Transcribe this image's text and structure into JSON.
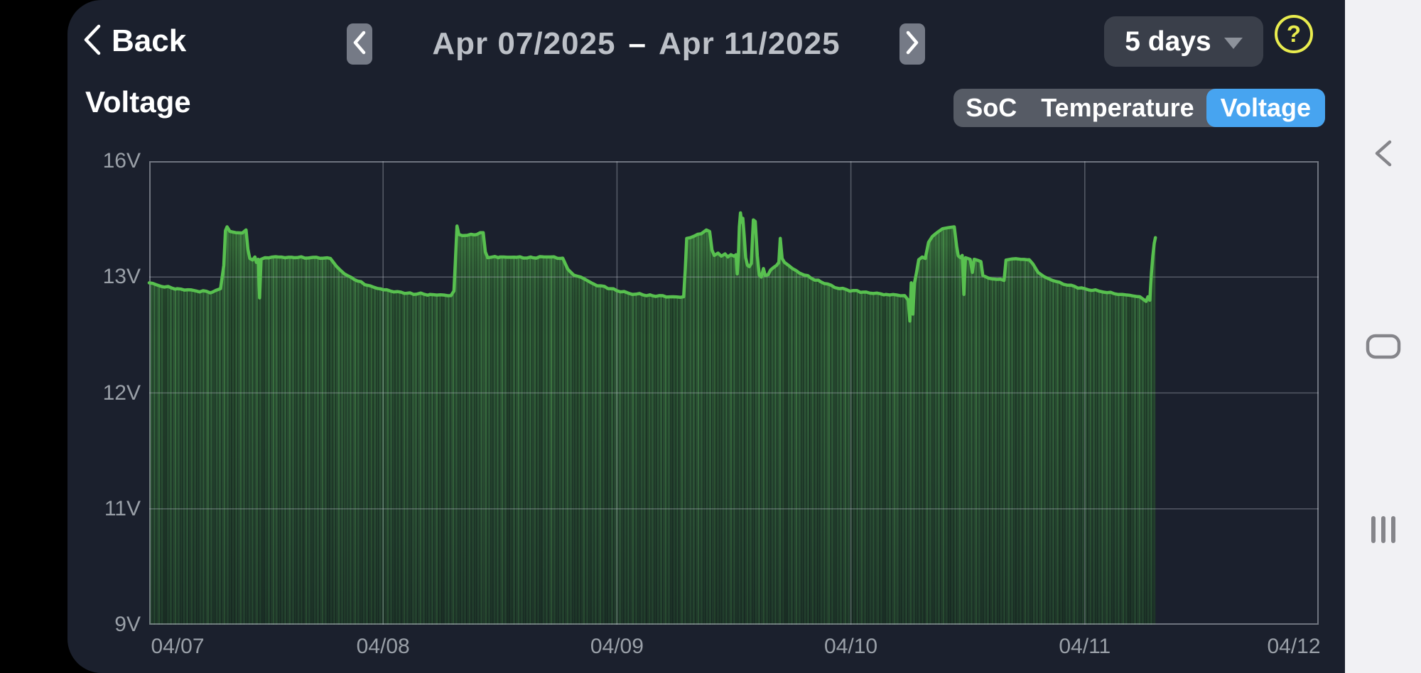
{
  "app": {
    "back_label": "Back",
    "date_range": {
      "start": "Apr 07/2025",
      "separator": "–",
      "end": "Apr 11/2025"
    },
    "range_selector": {
      "value": "5 days"
    },
    "help_label": "?",
    "chart_title": "Voltage",
    "tabs": [
      {
        "label": "SoC",
        "active": false
      },
      {
        "label": "Temperature",
        "active": false
      },
      {
        "label": "Voltage",
        "active": true
      }
    ]
  },
  "colors": {
    "panel_bg": "#1b202d",
    "accent_blue": "#47a4f0",
    "help_yellow": "#e9ec4e",
    "line_green": "#58c04f",
    "grid_gray": "#b4b9c3",
    "axis_label": "#9aa0a8",
    "navbar_bg": "#f1f1f4",
    "navbar_icon": "#85858a"
  },
  "navbar": {
    "icons": [
      "back-icon",
      "home-icon",
      "recent-apps-icon"
    ]
  },
  "chart_data": {
    "type": "line",
    "title": "Voltage",
    "unit": "V",
    "y_ticks": [
      "16V",
      "13V",
      "12V",
      "11V",
      "9V"
    ],
    "y_tick_values": [
      16,
      13,
      12,
      11,
      9
    ],
    "x_ticks": [
      "04/07",
      "04/08",
      "04/09",
      "04/10",
      "04/11",
      "04/12"
    ],
    "x_range_days": 5,
    "grid": true,
    "legend_position": "none",
    "series": [
      {
        "name": "Voltage",
        "color": "#58c04f",
        "points_format": "[days_since_04_07, volts]",
        "points": [
          [
            0.0,
            12.95
          ],
          [
            0.05,
            12.92
          ],
          [
            0.12,
            12.9
          ],
          [
            0.2,
            12.88
          ],
          [
            0.27,
            12.87
          ],
          [
            0.305,
            12.9
          ],
          [
            0.319,
            13.3
          ],
          [
            0.326,
            14.2
          ],
          [
            0.333,
            14.3
          ],
          [
            0.345,
            14.18
          ],
          [
            0.37,
            14.15
          ],
          [
            0.398,
            14.14
          ],
          [
            0.414,
            14.22
          ],
          [
            0.422,
            13.72
          ],
          [
            0.43,
            13.48
          ],
          [
            0.442,
            13.44
          ],
          [
            0.452,
            13.52
          ],
          [
            0.458,
            13.38
          ],
          [
            0.466,
            13.46
          ],
          [
            0.472,
            12.82
          ],
          [
            0.478,
            13.46
          ],
          [
            0.495,
            13.5
          ],
          [
            0.55,
            13.52
          ],
          [
            0.62,
            13.5
          ],
          [
            0.7,
            13.51
          ],
          [
            0.775,
            13.48
          ],
          [
            0.8,
            13.28
          ],
          [
            0.835,
            13.08
          ],
          [
            0.875,
            12.98
          ],
          [
            0.93,
            12.93
          ],
          [
            1.0,
            12.89
          ],
          [
            1.1,
            12.86
          ],
          [
            1.2,
            12.85
          ],
          [
            1.29,
            12.84
          ],
          [
            1.303,
            12.88
          ],
          [
            1.309,
            13.4
          ],
          [
            1.316,
            14.32
          ],
          [
            1.324,
            14.1
          ],
          [
            1.36,
            14.08
          ],
          [
            1.4,
            14.1
          ],
          [
            1.428,
            14.15
          ],
          [
            1.437,
            13.65
          ],
          [
            1.447,
            13.5
          ],
          [
            1.5,
            13.52
          ],
          [
            1.57,
            13.51
          ],
          [
            1.64,
            13.5
          ],
          [
            1.7,
            13.52
          ],
          [
            1.768,
            13.49
          ],
          [
            1.79,
            13.2
          ],
          [
            1.815,
            13.05
          ],
          [
            1.845,
            13.0
          ],
          [
            1.9,
            12.94
          ],
          [
            1.97,
            12.9
          ],
          [
            2.05,
            12.86
          ],
          [
            2.15,
            12.84
          ],
          [
            2.24,
            12.83
          ],
          [
            2.285,
            12.83
          ],
          [
            2.292,
            13.2
          ],
          [
            2.298,
            14.0
          ],
          [
            2.33,
            14.06
          ],
          [
            2.36,
            14.12
          ],
          [
            2.382,
            14.22
          ],
          [
            2.396,
            14.18
          ],
          [
            2.406,
            13.7
          ],
          [
            2.416,
            13.56
          ],
          [
            2.432,
            13.62
          ],
          [
            2.446,
            13.54
          ],
          [
            2.462,
            13.6
          ],
          [
            2.474,
            13.52
          ],
          [
            2.487,
            13.58
          ],
          [
            2.5,
            13.54
          ],
          [
            2.509,
            13.58
          ],
          [
            2.514,
            13.08
          ],
          [
            2.519,
            13.56
          ],
          [
            2.523,
            14.3
          ],
          [
            2.528,
            14.66
          ],
          [
            2.533,
            14.42
          ],
          [
            2.538,
            14.52
          ],
          [
            2.544,
            14.05
          ],
          [
            2.55,
            13.5
          ],
          [
            2.558,
            13.3
          ],
          [
            2.566,
            13.27
          ],
          [
            2.574,
            13.35
          ],
          [
            2.583,
            14.48
          ],
          [
            2.591,
            14.44
          ],
          [
            2.6,
            13.55
          ],
          [
            2.608,
            13.05
          ],
          [
            2.617,
            13.0
          ],
          [
            2.626,
            13.22
          ],
          [
            2.634,
            13.04
          ],
          [
            2.646,
            13.06
          ],
          [
            2.656,
            13.18
          ],
          [
            2.67,
            13.25
          ],
          [
            2.682,
            13.3
          ],
          [
            2.692,
            13.38
          ],
          [
            2.698,
            14.0
          ],
          [
            2.706,
            13.48
          ],
          [
            2.716,
            13.38
          ],
          [
            2.75,
            13.22
          ],
          [
            2.8,
            13.05
          ],
          [
            2.87,
            12.96
          ],
          [
            2.95,
            12.9
          ],
          [
            3.05,
            12.87
          ],
          [
            3.15,
            12.85
          ],
          [
            3.23,
            12.84
          ],
          [
            3.245,
            12.8
          ],
          [
            3.252,
            12.62
          ],
          [
            3.258,
            12.95
          ],
          [
            3.265,
            12.68
          ],
          [
            3.272,
            12.95
          ],
          [
            3.28,
            13.1
          ],
          [
            3.29,
            13.45
          ],
          [
            3.305,
            13.52
          ],
          [
            3.318,
            13.48
          ],
          [
            3.332,
            13.9
          ],
          [
            3.348,
            14.05
          ],
          [
            3.368,
            14.15
          ],
          [
            3.392,
            14.25
          ],
          [
            3.418,
            14.28
          ],
          [
            3.442,
            14.3
          ],
          [
            3.452,
            13.8
          ],
          [
            3.459,
            13.55
          ],
          [
            3.468,
            13.5
          ],
          [
            3.476,
            13.56
          ],
          [
            3.483,
            12.85
          ],
          [
            3.49,
            13.5
          ],
          [
            3.5,
            13.48
          ],
          [
            3.51,
            13.46
          ],
          [
            3.519,
            13.12
          ],
          [
            3.527,
            13.46
          ],
          [
            3.544,
            13.43
          ],
          [
            3.556,
            13.4
          ],
          [
            3.564,
            13.04
          ],
          [
            3.59,
            12.99
          ],
          [
            3.625,
            12.98
          ],
          [
            3.655,
            12.97
          ],
          [
            3.663,
            13.44
          ],
          [
            3.69,
            13.47
          ],
          [
            3.725,
            13.46
          ],
          [
            3.762,
            13.45
          ],
          [
            3.778,
            13.34
          ],
          [
            3.8,
            13.12
          ],
          [
            3.826,
            13.01
          ],
          [
            3.862,
            12.97
          ],
          [
            3.925,
            12.93
          ],
          [
            4.0,
            12.9
          ],
          [
            4.08,
            12.87
          ],
          [
            4.16,
            12.85
          ],
          [
            4.235,
            12.83
          ],
          [
            4.262,
            12.79
          ],
          [
            4.27,
            12.83
          ],
          [
            4.278,
            12.8
          ],
          [
            4.285,
            13.1
          ],
          [
            4.291,
            13.55
          ],
          [
            4.297,
            13.88
          ],
          [
            4.302,
            14.02
          ]
        ]
      }
    ]
  }
}
